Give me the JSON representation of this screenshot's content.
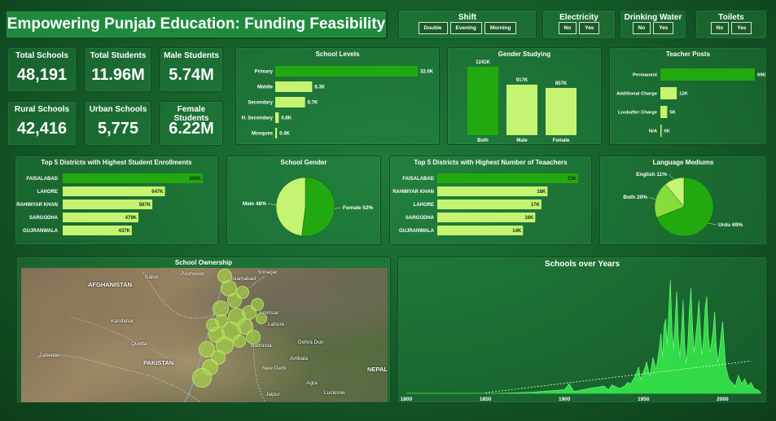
{
  "header": {
    "title": "Empowering Punjab Education: Funding Feasibility"
  },
  "slicers": {
    "shift": {
      "title": "Shift",
      "options": [
        "Double",
        "Evening",
        "Morning"
      ]
    },
    "electricity": {
      "title": "Electricity",
      "options": [
        "No",
        "Yes"
      ]
    },
    "water": {
      "title": "Drinking Water",
      "options": [
        "No",
        "Yes"
      ]
    },
    "toilets": {
      "title": "Toilets",
      "options": [
        "No",
        "Yes"
      ]
    }
  },
  "kpis": {
    "total_schools": {
      "label": "Total Schools",
      "value": "48,191"
    },
    "total_students": {
      "label": "Total Students",
      "value": "11.96M"
    },
    "male_students": {
      "label": "Male Students",
      "value": "5.74M"
    },
    "rural_schools": {
      "label": "Rural Schools",
      "value": "42,416"
    },
    "urban_schools": {
      "label": "Urban Schools",
      "value": "5,775"
    },
    "female_students": {
      "label": "Female Students",
      "value": "6.22M"
    }
  },
  "colors": {
    "dark_green": "#22a90f",
    "light_green": "#c5f472",
    "mid_green": "#86dd3a",
    "area_green": "#37f04e"
  },
  "chart_data": [
    {
      "id": "school_levels",
      "type": "bar",
      "orientation": "horizontal",
      "title": "School Levels",
      "categories": [
        "Primary",
        "Middle",
        "Secondary",
        "H. Secondary",
        "Mosques"
      ],
      "values": [
        32.0,
        8.3,
        6.7,
        0.8,
        0.4
      ],
      "labels": [
        "32.0K",
        "8.3K",
        "6.7K",
        "0.8K",
        "0.4K"
      ],
      "unit": "K"
    },
    {
      "id": "gender_studying",
      "type": "bar",
      "orientation": "vertical",
      "title": "Gender Studying",
      "categories": [
        "Both",
        "Male",
        "Female"
      ],
      "values": [
        1241,
        917,
        857
      ],
      "labels": [
        "1241K",
        "917K",
        "857K"
      ],
      "unit": "K"
    },
    {
      "id": "teacher_posts",
      "type": "bar",
      "orientation": "horizontal",
      "title": "Teacher Posts",
      "categories": [
        "Permanent",
        "Additional Charge",
        "Lookafter Charge",
        "N/A"
      ],
      "values": [
        69,
        12,
        5,
        0
      ],
      "labels": [
        "69K",
        "12K",
        "5K",
        "0K"
      ],
      "unit": "K"
    },
    {
      "id": "top_districts_enrollment",
      "type": "bar",
      "orientation": "horizontal",
      "title": "Top 5 Districts with Highest Student Enrollments",
      "categories": [
        "FAISALABAD",
        "LAHORE",
        "RAHIMYAR KHAN",
        "SARGODHA",
        "GUJRANWALA"
      ],
      "values": [
        886,
        647,
        567,
        479,
        437
      ],
      "labels": [
        "886K",
        "647K",
        "567K",
        "479K",
        "437K"
      ],
      "unit": "K"
    },
    {
      "id": "school_gender",
      "type": "pie",
      "title": "School Gender",
      "categories": [
        "Female",
        "Male"
      ],
      "values": [
        52,
        48
      ],
      "labels": [
        "Female 52%",
        "Male 48%"
      ]
    },
    {
      "id": "top_districts_teachers",
      "type": "bar",
      "orientation": "horizontal",
      "title": "Top 5 Districts with Highest Number of Teaachers",
      "categories": [
        "FAISALABAD",
        "RAHIMYAR KHAN",
        "LAHORE",
        "SARGODHA",
        "GUJRANWALA"
      ],
      "values": [
        23,
        18,
        17,
        16,
        14
      ],
      "labels": [
        "23K",
        "18K",
        "17K",
        "16K",
        "14K"
      ],
      "unit": "K"
    },
    {
      "id": "language_mediums",
      "type": "pie",
      "title": "Language Mediums",
      "categories": [
        "Urdu",
        "Both",
        "English"
      ],
      "values": [
        69,
        20,
        11
      ],
      "labels": [
        "Urdu 69%",
        "Both 20%",
        "English 11%"
      ]
    },
    {
      "id": "schools_over_years",
      "type": "area",
      "title": "Schools over Years",
      "xlim": [
        1800,
        2024
      ],
      "xticks": [
        1800,
        1850,
        1900,
        1950,
        2000
      ],
      "ylim": [
        0,
        1000
      ],
      "trendline": true,
      "x": [
        1800,
        1850,
        1870,
        1880,
        1890,
        1900,
        1903,
        1906,
        1910,
        1915,
        1920,
        1925,
        1928,
        1930,
        1935,
        1938,
        1940,
        1942,
        1945,
        1947,
        1948,
        1950,
        1952,
        1954,
        1956,
        1958,
        1960,
        1961,
        1962,
        1963,
        1964,
        1965,
        1966,
        1967,
        1968,
        1969,
        1970,
        1971,
        1972,
        1973,
        1974,
        1975,
        1976,
        1977,
        1978,
        1979,
        1980,
        1981,
        1982,
        1983,
        1984,
        1985,
        1986,
        1987,
        1988,
        1989,
        1990,
        1991,
        1992,
        1993,
        1994,
        1995,
        1996,
        1997,
        1998,
        1999,
        2000,
        2002,
        2004,
        2006,
        2008,
        2010,
        2012,
        2014,
        2016,
        2018,
        2020,
        2022,
        2024
      ],
      "y": [
        0,
        0,
        5,
        10,
        20,
        30,
        80,
        15,
        25,
        40,
        50,
        60,
        30,
        70,
        40,
        60,
        90,
        80,
        150,
        220,
        120,
        180,
        260,
        140,
        300,
        200,
        380,
        500,
        300,
        560,
        620,
        400,
        700,
        950,
        520,
        380,
        600,
        850,
        480,
        300,
        520,
        780,
        420,
        250,
        400,
        700,
        880,
        560,
        340,
        470,
        600,
        780,
        520,
        320,
        460,
        720,
        810,
        480,
        340,
        420,
        520,
        680,
        400,
        260,
        360,
        480,
        600,
        220,
        120,
        90,
        60,
        150,
        80,
        120,
        60,
        90,
        40,
        30,
        10
      ]
    }
  ],
  "map": {
    "title": "School Ownership",
    "labels": [
      "AFGHANISTAN",
      "PAKISTAN",
      "NEPAL",
      "Islamabad",
      "Amritsar",
      "Srinagar",
      "Quetta",
      "Kandahar",
      "Zahedan",
      "New Delhi",
      "Dehra Dun",
      "Lucknow",
      "Agra",
      "Ambala",
      "Bathinda",
      "Jaipur",
      "Kabul",
      "Peshawar",
      "Lahore"
    ]
  }
}
